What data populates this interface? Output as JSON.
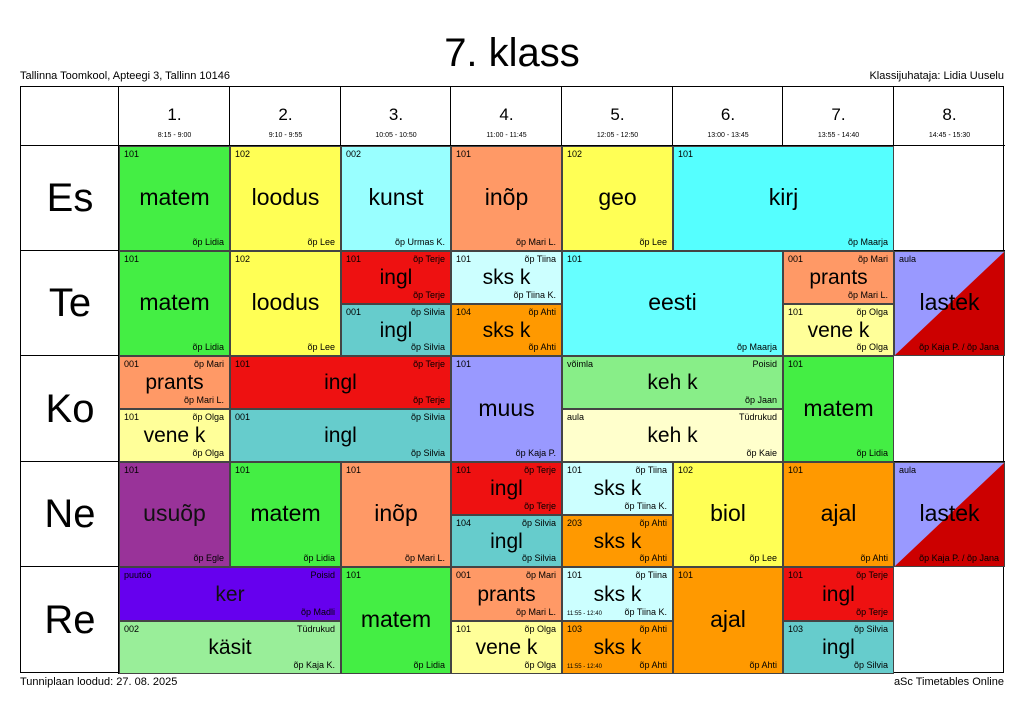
{
  "page": {
    "title": "7. klass",
    "school": "Tallinna Toomkool, Apteegi 3, Tallinn 10146",
    "class_teacher": "Klassijuhataja: Lidia Uuselu",
    "created": "Tunniplaan loodud: 27. 08. 2025",
    "brand": "aSc Timetables Online"
  },
  "periods": [
    {
      "num": "1.",
      "time": "8:15 - 9:00"
    },
    {
      "num": "2.",
      "time": "9:10 - 9:55"
    },
    {
      "num": "3.",
      "time": "10:05 - 10:50"
    },
    {
      "num": "4.",
      "time": "11:00 - 11:45"
    },
    {
      "num": "5.",
      "time": "12:05 - 12:50"
    },
    {
      "num": "6.",
      "time": "13:00 - 13:45"
    },
    {
      "num": "7.",
      "time": "13:55 - 14:40"
    },
    {
      "num": "8.",
      "time": "14:45 - 15:30"
    }
  ],
  "days": [
    "Es",
    "Te",
    "Ko",
    "Ne",
    "Re"
  ],
  "lessons": [
    {
      "day": 0,
      "p": 0,
      "span": 1,
      "part": "full",
      "subject": "matem",
      "room": "101",
      "teacher": "õp Lidia",
      "color": "#44ee44"
    },
    {
      "day": 0,
      "p": 1,
      "span": 1,
      "part": "full",
      "subject": "loodus",
      "room": "102",
      "teacher": "õp Lee",
      "color": "#ffff55"
    },
    {
      "day": 0,
      "p": 2,
      "span": 1,
      "part": "full",
      "subject": "kunst",
      "room": "002",
      "teacher": "õp Urmas K.",
      "color": "#99ffff"
    },
    {
      "day": 0,
      "p": 3,
      "span": 1,
      "part": "full",
      "subject": "inõp",
      "room": "101",
      "teacher": "õp Mari L.",
      "color": "#ff9966"
    },
    {
      "day": 0,
      "p": 4,
      "span": 1,
      "part": "full",
      "subject": "geo",
      "room": "102",
      "teacher": "õp Lee",
      "color": "#ffff55"
    },
    {
      "day": 0,
      "p": 5,
      "span": 2,
      "part": "full",
      "subject": "kirj",
      "room": "101",
      "teacher": "õp Maarja",
      "color": "#55ffff"
    },
    {
      "day": 1,
      "p": 0,
      "span": 1,
      "part": "full",
      "subject": "matem",
      "room": "101",
      "teacher": "õp Lidia",
      "color": "#44ee44"
    },
    {
      "day": 1,
      "p": 1,
      "span": 1,
      "part": "full",
      "subject": "loodus",
      "room": "102",
      "teacher": "õp Lee",
      "color": "#ffff55"
    },
    {
      "day": 1,
      "p": 2,
      "span": 1,
      "part": "top",
      "subject": "ingl",
      "room": "101",
      "teacher_top": "õp Terje",
      "teacher": "õp Terje",
      "color": "#ee1111"
    },
    {
      "day": 1,
      "p": 2,
      "span": 1,
      "part": "bot",
      "subject": "ingl",
      "room": "001",
      "teacher_top": "õp Silvia",
      "teacher": "õp Silvia",
      "color": "#66cccc"
    },
    {
      "day": 1,
      "p": 3,
      "span": 1,
      "part": "top",
      "subject": "sks k",
      "room": "101",
      "teacher_top": "õp Tiina",
      "teacher": "õp Tiina K.",
      "color": "#ccffff"
    },
    {
      "day": 1,
      "p": 3,
      "span": 1,
      "part": "bot",
      "subject": "sks k",
      "room": "104",
      "teacher_top": "õp Ahti",
      "teacher": "õp Ahti",
      "color": "#ff9900"
    },
    {
      "day": 1,
      "p": 4,
      "span": 2,
      "part": "full",
      "subject": "eesti",
      "room": "101",
      "teacher": "õp Maarja",
      "color": "#66ffff"
    },
    {
      "day": 1,
      "p": 6,
      "span": 1,
      "part": "top",
      "subject": "prants",
      "room": "001",
      "teacher_top": "õp Mari",
      "teacher": "õp Mari L.",
      "color": "#ff9966"
    },
    {
      "day": 1,
      "p": 6,
      "span": 1,
      "part": "bot",
      "subject": "vene k",
      "room": "101",
      "teacher_top": "õp Olga",
      "teacher": "õp Olga",
      "color": "#ffff99"
    },
    {
      "day": 1,
      "p": 7,
      "span": 1,
      "part": "full",
      "subject": "lastek",
      "room": "aula",
      "teacher": "õp Kaja P. / õp Jana",
      "color": "#9999ff",
      "color2": "#cc0000"
    },
    {
      "day": 2,
      "p": 0,
      "span": 1,
      "part": "top",
      "subject": "prants",
      "room": "001",
      "teacher_top": "õp Mari",
      "teacher": "õp Mari L.",
      "color": "#ff9966"
    },
    {
      "day": 2,
      "p": 0,
      "span": 1,
      "part": "bot",
      "subject": "vene k",
      "room": "101",
      "teacher_top": "õp Olga",
      "teacher": "õp Olga",
      "color": "#ffff99"
    },
    {
      "day": 2,
      "p": 1,
      "span": 2,
      "part": "top",
      "subject": "ingl",
      "room": "101",
      "teacher_top": "õp Terje",
      "teacher": "õp Terje",
      "color": "#ee1111"
    },
    {
      "day": 2,
      "p": 1,
      "span": 2,
      "part": "bot",
      "subject": "ingl",
      "room": "001",
      "teacher_top": "õp Silvia",
      "teacher": "õp Silvia",
      "color": "#66cccc"
    },
    {
      "day": 2,
      "p": 3,
      "span": 1,
      "part": "full",
      "subject": "muus",
      "room": "101",
      "teacher": "õp Kaja P.",
      "color": "#9999ff"
    },
    {
      "day": 2,
      "p": 4,
      "span": 2,
      "part": "top",
      "subject": "keh k",
      "room": "võimla",
      "teacher_top": "Poisid",
      "teacher": "õp Jaan",
      "color": "#88ee88"
    },
    {
      "day": 2,
      "p": 4,
      "span": 2,
      "part": "bot",
      "subject": "keh k",
      "room": "aula",
      "teacher_top": "Tüdrukud",
      "teacher": "õp Kaie",
      "color": "#ffffcc"
    },
    {
      "day": 2,
      "p": 6,
      "span": 1,
      "part": "full",
      "subject": "matem",
      "room": "101",
      "teacher": "õp Lidia",
      "color": "#44ee44"
    },
    {
      "day": 3,
      "p": 0,
      "span": 1,
      "part": "full",
      "subject": "usuõp",
      "room": "101",
      "teacher": "õp Egle",
      "color": "#993399"
    },
    {
      "day": 3,
      "p": 1,
      "span": 1,
      "part": "full",
      "subject": "matem",
      "room": "101",
      "teacher": "õp Lidia",
      "color": "#44ee44"
    },
    {
      "day": 3,
      "p": 2,
      "span": 1,
      "part": "full",
      "subject": "inõp",
      "room": "101",
      "teacher": "õp Mari L.",
      "color": "#ff9966"
    },
    {
      "day": 3,
      "p": 3,
      "span": 1,
      "part": "top",
      "subject": "ingl",
      "room": "101",
      "teacher_top": "õp Terje",
      "teacher": "õp Terje",
      "color": "#ee1111"
    },
    {
      "day": 3,
      "p": 3,
      "span": 1,
      "part": "bot",
      "subject": "ingl",
      "room": "104",
      "teacher_top": "õp Silvia",
      "teacher": "õp Silvia",
      "color": "#66cccc"
    },
    {
      "day": 3,
      "p": 4,
      "span": 1,
      "part": "top",
      "subject": "sks k",
      "room": "101",
      "teacher_top": "õp Tiina",
      "teacher": "õp Tiina K.",
      "color": "#ccffff"
    },
    {
      "day": 3,
      "p": 4,
      "span": 1,
      "part": "bot",
      "subject": "sks k",
      "room": "203",
      "teacher_top": "õp Ahti",
      "teacher": "õp Ahti",
      "color": "#ff9900"
    },
    {
      "day": 3,
      "p": 5,
      "span": 1,
      "part": "full",
      "subject": "biol",
      "room": "102",
      "teacher": "õp Lee",
      "color": "#ffff55"
    },
    {
      "day": 3,
      "p": 6,
      "span": 1,
      "part": "full",
      "subject": "ajal",
      "room": "101",
      "teacher": "õp Ahti",
      "color": "#ff9900"
    },
    {
      "day": 3,
      "p": 7,
      "span": 1,
      "part": "full",
      "subject": "lastek",
      "room": "aula",
      "teacher": "õp Kaja P. / õp Jana",
      "color": "#9999ff",
      "color2": "#cc0000"
    },
    {
      "day": 4,
      "p": 0,
      "span": 2,
      "part": "top",
      "subject": "ker",
      "room": "puutöö",
      "teacher_top": "Poisid",
      "teacher": "õp Madli",
      "color": "#6600ee"
    },
    {
      "day": 4,
      "p": 0,
      "span": 2,
      "part": "bot",
      "subject": "käsit",
      "room": "002",
      "teacher_top": "Tüdrukud",
      "teacher": "õp Kaja K.",
      "color": "#99ee99"
    },
    {
      "day": 4,
      "p": 2,
      "span": 1,
      "part": "full",
      "subject": "matem",
      "room": "101",
      "teacher": "õp Lidia",
      "color": "#44ee44"
    },
    {
      "day": 4,
      "p": 3,
      "span": 1,
      "part": "top",
      "subject": "prants",
      "room": "001",
      "teacher_top": "õp Mari",
      "teacher": "õp Mari L.",
      "color": "#ff9966"
    },
    {
      "day": 4,
      "p": 3,
      "span": 1,
      "part": "bot",
      "subject": "vene k",
      "room": "101",
      "teacher_top": "õp Olga",
      "teacher": "õp Olga",
      "color": "#ffff99"
    },
    {
      "day": 4,
      "p": 4,
      "span": 1,
      "part": "top",
      "subject": "sks k",
      "room": "101",
      "teacher_top": "õp Tiina",
      "teacher": "õp Tiina K.",
      "time": "11:55 - 12:40",
      "color": "#ccffff"
    },
    {
      "day": 4,
      "p": 4,
      "span": 1,
      "part": "bot",
      "subject": "sks k",
      "room": "103",
      "teacher_top": "õp Ahti",
      "teacher": "õp Ahti",
      "time": "11:55 - 12:40",
      "color": "#ff9900"
    },
    {
      "day": 4,
      "p": 5,
      "span": 1,
      "part": "full",
      "subject": "ajal",
      "room": "101",
      "teacher": "õp Ahti",
      "color": "#ff9900"
    },
    {
      "day": 4,
      "p": 6,
      "span": 1,
      "part": "top",
      "subject": "ingl",
      "room": "101",
      "teacher_top": "õp Terje",
      "teacher": "õp Terje",
      "color": "#ee1111"
    },
    {
      "day": 4,
      "p": 6,
      "span": 1,
      "part": "bot",
      "subject": "ingl",
      "room": "103",
      "teacher_top": "õp Silvia",
      "teacher": "õp Silvia",
      "color": "#66cccc"
    }
  ]
}
